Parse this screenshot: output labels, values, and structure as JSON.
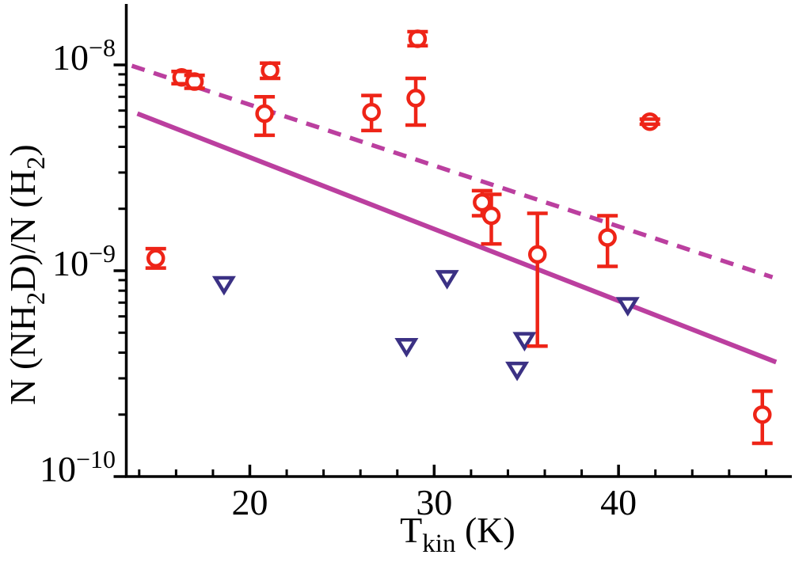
{
  "figure": {
    "background": "#ffffff",
    "axis_color": "#000000"
  },
  "chart_data": {
    "type": "scatter",
    "title": "",
    "xlabel": "T_kin (K)",
    "ylabel": "N (NH2D)/N (H2)",
    "xlabel_parts": [
      {
        "t": "T"
      },
      {
        "t": "kin",
        "sub": true
      },
      {
        "t": " (K)"
      }
    ],
    "ylabel_parts": [
      {
        "t": "N (NH"
      },
      {
        "t": "2",
        "sub": true
      },
      {
        "t": "D)/N (H"
      },
      {
        "t": "2",
        "sub": true
      },
      {
        "t": ")"
      }
    ],
    "x_axis": {
      "min": 13.3,
      "max": 49.4,
      "major_ticks": [
        20,
        30,
        40
      ],
      "major_labels": [
        "20",
        "30",
        "40"
      ],
      "minor_tick_step": 2,
      "minor_tick_start": 14,
      "minor_tick_end": 48
    },
    "y_axis": {
      "scale": "log",
      "min": 1e-10,
      "max": 2e-08,
      "major_ticks": [
        1e-08,
        1e-09,
        1e-10
      ],
      "major_labels": [
        {
          "base": "10",
          "exp": "−8",
          "value": 1e-08
        },
        {
          "base": "10",
          "exp": "−9",
          "value": 1e-09
        },
        {
          "base": "10",
          "exp": "−10",
          "value": 1e-10
        }
      ],
      "grid": false
    },
    "legend": null,
    "series": [
      {
        "name": "NH2D detections",
        "type": "scatter-errorbar",
        "marker": "open-circle",
        "color": "#ee2417",
        "points": [
          {
            "T": 14.9,
            "v": 1.15e-09,
            "lo": 1.03e-09,
            "hi": 1.28e-09
          },
          {
            "T": 16.3,
            "v": 8.7e-09,
            "lo": 8.1e-09,
            "hi": 9.3e-09
          },
          {
            "T": 17.0,
            "v": 8.3e-09,
            "lo": 7.7e-09,
            "hi": 8.9e-09
          },
          {
            "T": 20.8,
            "v": 5.8e-09,
            "lo": 4.55e-09,
            "hi": 7e-09
          },
          {
            "T": 21.1,
            "v": 9.4e-09,
            "lo": 8.6e-09,
            "hi": 1.02e-08
          },
          {
            "T": 26.6,
            "v": 5.9e-09,
            "lo": 4.8e-09,
            "hi": 7.1e-09
          },
          {
            "T": 29.0,
            "v": 6.9e-09,
            "lo": 5.1e-09,
            "hi": 8.6e-09
          },
          {
            "T": 29.1,
            "v": 1.34e-08,
            "lo": 1.24e-08,
            "hi": 1.45e-08
          },
          {
            "T": 32.6,
            "v": 2.15e-09,
            "lo": 1.85e-09,
            "hi": 2.45e-09
          },
          {
            "T": 33.1,
            "v": 1.85e-09,
            "lo": 1.35e-09,
            "hi": 2.35e-09
          },
          {
            "T": 35.6,
            "v": 1.2e-09,
            "lo": 4.3e-10,
            "hi": 1.9e-09
          },
          {
            "T": 39.4,
            "v": 1.45e-09,
            "lo": 1.05e-09,
            "hi": 1.85e-09
          },
          {
            "T": 41.7,
            "v": 5.3e-09,
            "lo": 5.15e-09,
            "hi": 5.45e-09
          },
          {
            "T": 47.8,
            "v": 2e-10,
            "lo": 1.45e-10,
            "hi": 2.6e-10
          }
        ]
      },
      {
        "name": "upper limits",
        "type": "scatter",
        "marker": "open-triangle-down",
        "color": "#3b3184",
        "points": [
          {
            "T": 18.6,
            "v": 8.6e-10
          },
          {
            "T": 28.5,
            "v": 4.3e-10
          },
          {
            "T": 30.7,
            "v": 9.2e-10
          },
          {
            "T": 34.5,
            "v": 3.3e-10
          },
          {
            "T": 34.9,
            "v": 4.6e-10
          },
          {
            "T": 40.5,
            "v": 6.8e-10
          }
        ]
      },
      {
        "name": "fit line dashed",
        "type": "line",
        "style": "dashed",
        "color": "#bb3f9f",
        "from": {
          "T": 13.6,
          "v": 9.9e-09
        },
        "to": {
          "T": 48.35,
          "v": 9.3e-10
        }
      },
      {
        "name": "fit line solid",
        "type": "line",
        "style": "solid",
        "color": "#bb3f9f",
        "from": {
          "T": 13.9,
          "v": 5.8e-09
        },
        "to": {
          "T": 48.55,
          "v": 3.6e-10
        }
      }
    ]
  }
}
